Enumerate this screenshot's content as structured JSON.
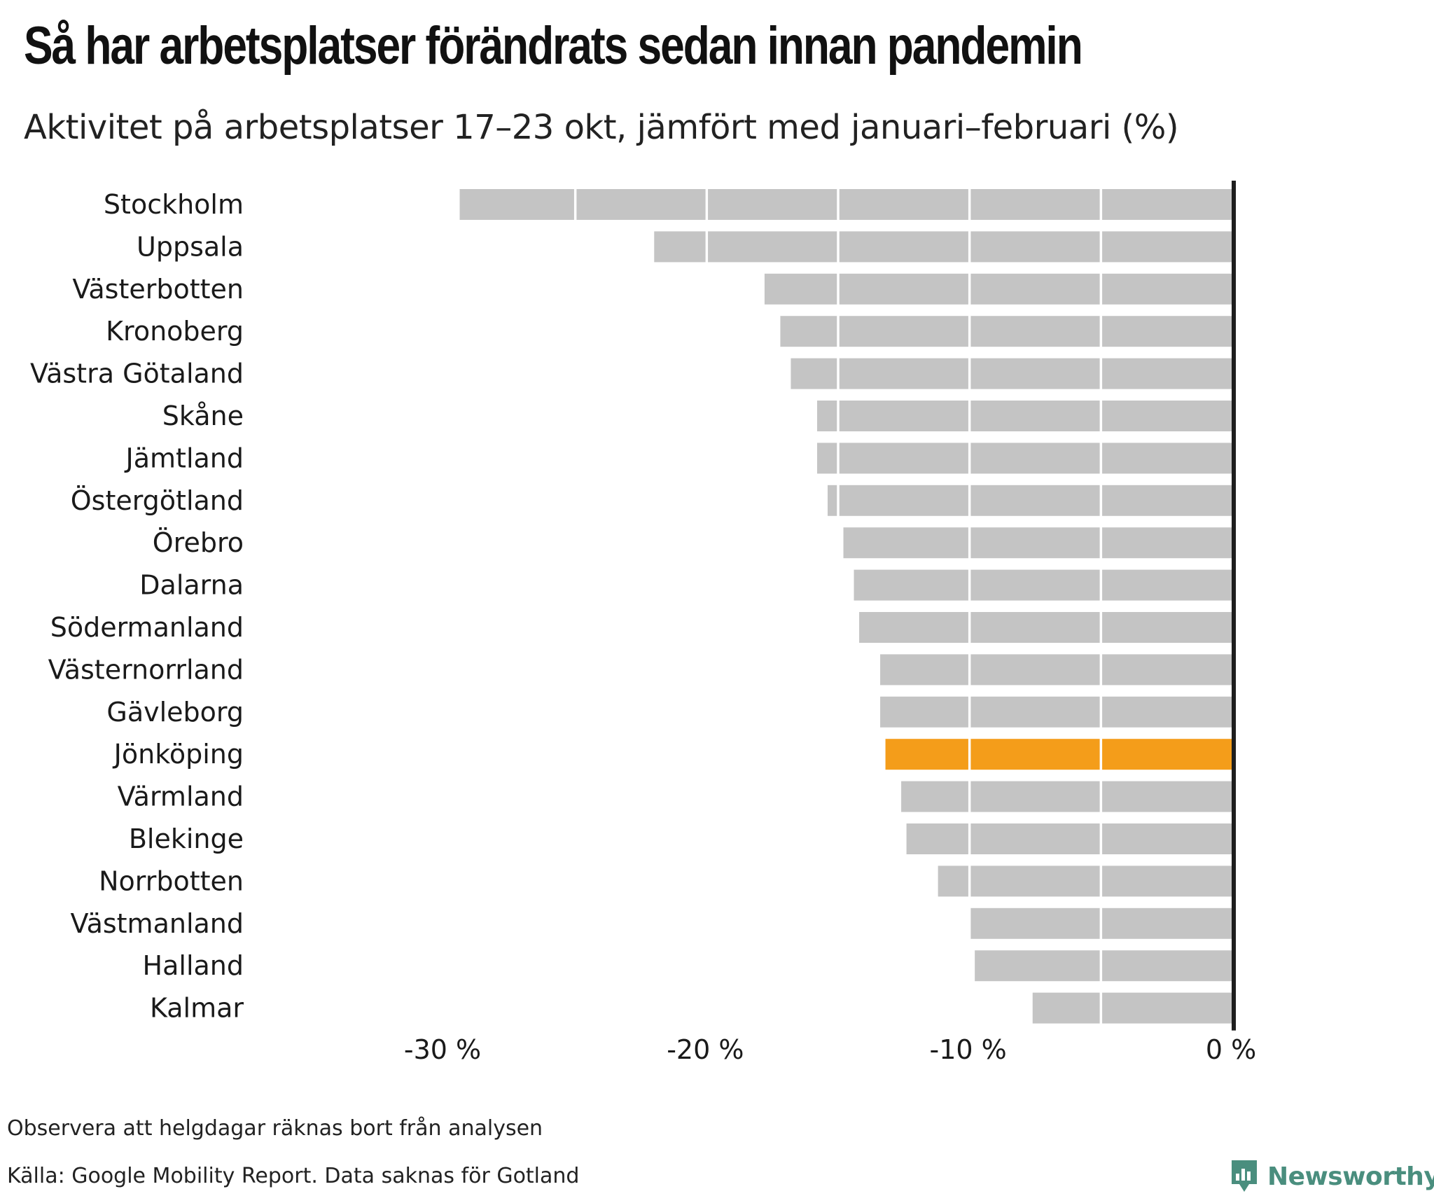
{
  "title": "Så har arbetsplatser förändrats sedan innan pandemin",
  "subtitle": "Aktivitet på arbetsplatser 17–23 okt, jämfört med januari–februari (%)",
  "notes": {
    "holidays": "Observera att helgdagar räknas bort från analysen",
    "source": "Källa: Google Mobility Report. Data saknas för Gotland"
  },
  "brand": {
    "name": "Newsworthy",
    "icon": "newsworthy-logo-icon",
    "color": "#4a8e7e"
  },
  "colors": {
    "bar": "#c4c4c4",
    "highlight": "#f49d1a",
    "zero_line": "#1e1e1e",
    "grid": "#ffffff"
  },
  "chart_data": {
    "type": "bar",
    "orientation": "horizontal",
    "title": "Så har arbetsplatser förändrats sedan innan pandemin",
    "subtitle": "Aktivitet på arbetsplatser 17–23 okt, jämfört med januari–februari (%)",
    "categories": [
      "Stockholm",
      "Uppsala",
      "Västerbotten",
      "Kronoberg",
      "Västra Götaland",
      "Skåne",
      "Jämtland",
      "Östergötland",
      "Örebro",
      "Dalarna",
      "Södermanland",
      "Västernorrland",
      "Gävleborg",
      "Jönköping",
      "Värmland",
      "Blekinge",
      "Norrbotten",
      "Västmanland",
      "Halland",
      "Kalmar"
    ],
    "values": [
      -29.4,
      -22,
      -17.8,
      -17.2,
      -16.8,
      -15.8,
      -15.8,
      -15.4,
      -14.8,
      -14.4,
      -14.2,
      -13.4,
      -13.4,
      -13.2,
      -12.6,
      -12.4,
      -11.2,
      -10,
      -9.8,
      -7.6
    ],
    "highlight": "Jönköping",
    "xlim": [
      -30,
      0
    ],
    "xticks": [
      -30,
      -20,
      -10,
      0
    ],
    "xtick_labels": [
      "-30 %",
      "-20 %",
      "-10 %",
      "0 %"
    ],
    "xlabel": "",
    "ylabel": "",
    "grid": true
  }
}
